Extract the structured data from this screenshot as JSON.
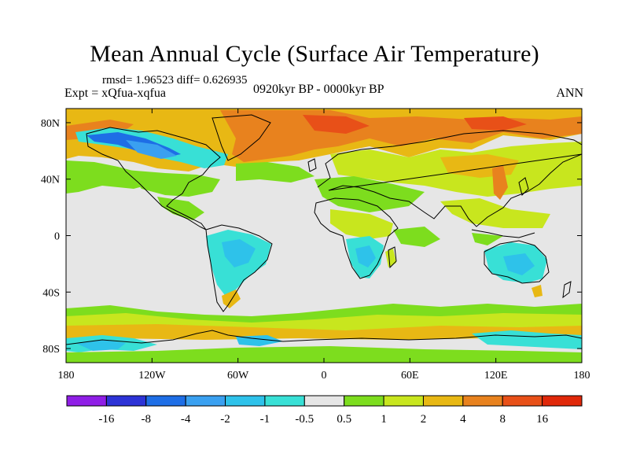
{
  "header": {
    "title": "Mean Annual Cycle (Surface Air Temperature)",
    "stats": "rmsd= 1.96523 diff= 0.626935",
    "experiment": "Expt = xQfua-xqfua",
    "period": "0920kyr BP - 0000kyr BP",
    "season": "ANN"
  },
  "map": {
    "lat_range": [
      -90,
      90
    ],
    "lon_range": [
      -180,
      180
    ],
    "lat_ticks": [
      {
        "value": 80,
        "label": "80N"
      },
      {
        "value": 40,
        "label": "40N"
      },
      {
        "value": 0,
        "label": "0"
      },
      {
        "value": -40,
        "label": "40S"
      },
      {
        "value": -80,
        "label": "80S"
      }
    ],
    "lon_ticks": [
      {
        "value": -180,
        "label": "180"
      },
      {
        "value": -120,
        "label": "120W"
      },
      {
        "value": -60,
        "label": "60W"
      },
      {
        "value": 0,
        "label": "0"
      },
      {
        "value": 60,
        "label": "60E"
      },
      {
        "value": 120,
        "label": "120E"
      },
      {
        "value": 180,
        "label": "180"
      }
    ]
  },
  "colorbar": {
    "colors": [
      "#8f1ee6",
      "#2d33d6",
      "#1e6ee6",
      "#3aa0f0",
      "#2ec2ea",
      "#38e0d6",
      "#e6e6e6",
      "#7ddd1e",
      "#c8e61e",
      "#e8b814",
      "#e8821e",
      "#e85018",
      "#e0280a"
    ],
    "labels": [
      "-16",
      "-8",
      "-4",
      "-2",
      "-1",
      "-0.5",
      "0.5",
      "1",
      "2",
      "4",
      "8",
      "16"
    ]
  },
  "palette": {
    "ocean_neutral": "#e6e6e6",
    "coast": "#000000"
  }
}
